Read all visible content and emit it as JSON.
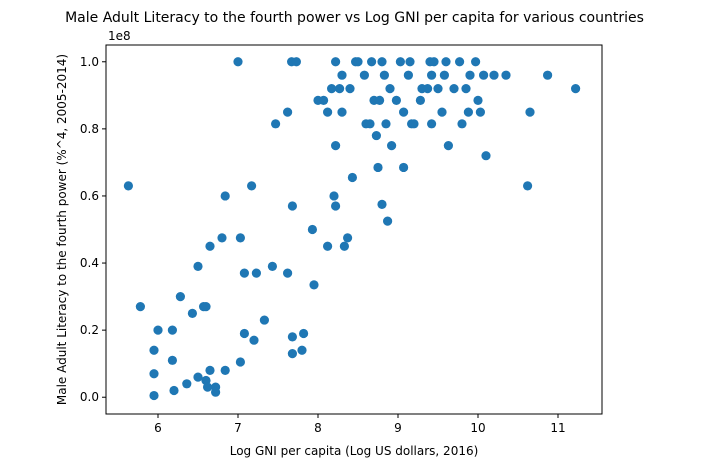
{
  "chart_data": {
    "type": "scatter",
    "title": "Male Adult Literacy to the fourth power vs Log GNI per capita for various countries",
    "xlabel": "Log GNI per capita (Log US dollars, 2016)",
    "ylabel": "Male Adult Literacy to the fourth power (%^4, 2005-2014)",
    "y_offset_label": "1e8",
    "xlim": [
      5.35,
      11.55
    ],
    "ylim": [
      -0.05,
      1.05
    ],
    "x_ticks": [
      6,
      7,
      8,
      9,
      10,
      11
    ],
    "y_ticks": [
      0.0,
      0.2,
      0.4,
      0.6,
      0.8,
      1.0
    ],
    "x_tick_labels": [
      "6",
      "7",
      "8",
      "9",
      "10",
      "11"
    ],
    "y_tick_labels": [
      "0.0",
      "0.2",
      "0.4",
      "0.6",
      "0.8",
      "1.0"
    ],
    "grid": false,
    "marker_color": "#1f77b4",
    "points": [
      [
        5.63,
        0.63
      ],
      [
        5.78,
        0.27
      ],
      [
        5.95,
        0.14
      ],
      [
        5.95,
        0.07
      ],
      [
        5.95,
        0.005
      ],
      [
        6.0,
        0.2
      ],
      [
        6.18,
        0.2
      ],
      [
        6.18,
        0.11
      ],
      [
        6.2,
        0.02
      ],
      [
        6.28,
        0.3
      ],
      [
        6.36,
        0.04
      ],
      [
        6.43,
        0.25
      ],
      [
        6.5,
        0.39
      ],
      [
        6.5,
        0.06
      ],
      [
        6.57,
        0.27
      ],
      [
        6.6,
        0.27
      ],
      [
        6.6,
        0.05
      ],
      [
        6.62,
        0.03
      ],
      [
        6.65,
        0.45
      ],
      [
        6.65,
        0.08
      ],
      [
        6.72,
        0.03
      ],
      [
        6.72,
        0.015
      ],
      [
        6.8,
        0.475
      ],
      [
        6.84,
        0.6
      ],
      [
        6.84,
        0.08
      ],
      [
        7.0,
        1.0
      ],
      [
        7.03,
        0.475
      ],
      [
        7.03,
        0.105
      ],
      [
        7.08,
        0.37
      ],
      [
        7.08,
        0.19
      ],
      [
        7.17,
        0.63
      ],
      [
        7.2,
        0.17
      ],
      [
        7.23,
        0.37
      ],
      [
        7.33,
        0.23
      ],
      [
        7.43,
        0.39
      ],
      [
        7.47,
        0.815
      ],
      [
        7.62,
        0.85
      ],
      [
        7.62,
        0.37
      ],
      [
        7.67,
        1.0
      ],
      [
        7.68,
        0.57
      ],
      [
        7.68,
        0.18
      ],
      [
        7.68,
        0.13
      ],
      [
        7.73,
        1.0
      ],
      [
        7.8,
        0.14
      ],
      [
        7.82,
        0.19
      ],
      [
        7.93,
        0.5
      ],
      [
        7.95,
        0.335
      ],
      [
        8.0,
        0.885
      ],
      [
        8.07,
        0.885
      ],
      [
        8.12,
        0.85
      ],
      [
        8.12,
        0.45
      ],
      [
        8.17,
        0.92
      ],
      [
        8.2,
        0.6
      ],
      [
        8.22,
        1.0
      ],
      [
        8.22,
        0.75
      ],
      [
        8.22,
        0.57
      ],
      [
        8.27,
        0.92
      ],
      [
        8.3,
        0.96
      ],
      [
        8.3,
        0.85
      ],
      [
        8.33,
        0.45
      ],
      [
        8.37,
        0.475
      ],
      [
        8.4,
        0.92
      ],
      [
        8.43,
        0.655
      ],
      [
        8.47,
        1.0
      ],
      [
        8.5,
        1.0
      ],
      [
        8.58,
        0.96
      ],
      [
        8.6,
        0.815
      ],
      [
        8.65,
        0.815
      ],
      [
        8.67,
        1.0
      ],
      [
        8.7,
        0.885
      ],
      [
        8.73,
        0.78
      ],
      [
        8.75,
        0.685
      ],
      [
        8.77,
        0.885
      ],
      [
        8.8,
        1.0
      ],
      [
        8.8,
        0.575
      ],
      [
        8.83,
        0.96
      ],
      [
        8.85,
        0.815
      ],
      [
        8.87,
        0.525
      ],
      [
        8.9,
        0.92
      ],
      [
        8.92,
        0.75
      ],
      [
        8.98,
        0.885
      ],
      [
        9.03,
        1.0
      ],
      [
        9.07,
        0.85
      ],
      [
        9.07,
        0.685
      ],
      [
        9.13,
        0.96
      ],
      [
        9.15,
        1.0
      ],
      [
        9.17,
        0.815
      ],
      [
        9.2,
        0.815
      ],
      [
        9.28,
        0.885
      ],
      [
        9.3,
        0.92
      ],
      [
        9.37,
        0.92
      ],
      [
        9.4,
        1.0
      ],
      [
        9.42,
        0.96
      ],
      [
        9.42,
        0.815
      ],
      [
        9.45,
        1.0
      ],
      [
        9.5,
        0.92
      ],
      [
        9.55,
        0.85
      ],
      [
        9.58,
        0.96
      ],
      [
        9.6,
        1.0
      ],
      [
        9.63,
        0.75
      ],
      [
        9.7,
        0.92
      ],
      [
        9.77,
        1.0
      ],
      [
        9.8,
        0.815
      ],
      [
        9.85,
        0.92
      ],
      [
        9.88,
        0.85
      ],
      [
        9.9,
        0.96
      ],
      [
        9.97,
        1.0
      ],
      [
        10.0,
        0.885
      ],
      [
        10.03,
        0.85
      ],
      [
        10.07,
        0.96
      ],
      [
        10.1,
        0.72
      ],
      [
        10.2,
        0.96
      ],
      [
        10.35,
        0.96
      ],
      [
        10.62,
        0.63
      ],
      [
        10.65,
        0.85
      ],
      [
        10.87,
        0.96
      ],
      [
        11.22,
        0.92
      ]
    ]
  }
}
